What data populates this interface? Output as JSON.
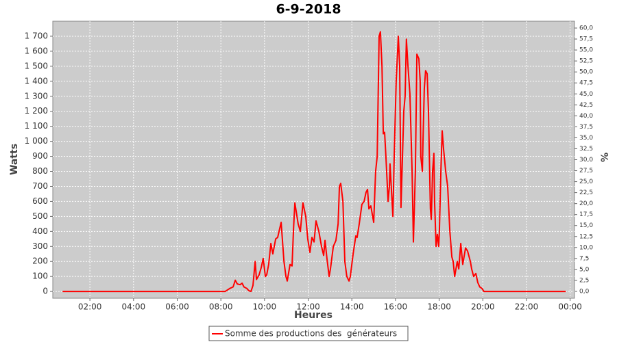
{
  "chart_data": {
    "type": "line",
    "title": "6-9-2018",
    "x_label": "Heures",
    "y_label": "Watts",
    "y2_label": "%",
    "x": [
      0.75,
      8.2,
      8.41,
      8.56,
      8.66,
      8.75,
      8.88,
      8.97,
      9.06,
      9.19,
      9.28,
      9.38,
      9.47,
      9.57,
      9.63,
      9.75,
      9.85,
      9.94,
      10.04,
      10.1,
      10.19,
      10.29,
      10.38,
      10.51,
      10.6,
      10.76,
      10.89,
      10.98,
      11.04,
      11.17,
      11.26,
      11.33,
      11.39,
      11.54,
      11.64,
      11.76,
      11.89,
      11.98,
      12.08,
      12.17,
      12.27,
      12.36,
      12.49,
      12.61,
      12.71,
      12.77,
      12.86,
      12.96,
      13.02,
      13.15,
      13.27,
      13.37,
      13.43,
      13.49,
      13.59,
      13.68,
      13.77,
      13.87,
      13.93,
      14.06,
      14.18,
      14.24,
      14.34,
      14.46,
      14.56,
      14.65,
      14.72,
      14.78,
      14.87,
      15.0,
      15.09,
      15.16,
      15.25,
      15.31,
      15.38,
      15.44,
      15.5,
      15.56,
      15.66,
      15.72,
      15.75,
      15.88,
      15.94,
      16.03,
      16.13,
      16.19,
      16.25,
      16.38,
      16.44,
      16.5,
      16.57,
      16.66,
      16.76,
      16.82,
      16.91,
      16.98,
      17.07,
      17.13,
      17.16,
      17.23,
      17.26,
      17.32,
      17.38,
      17.45,
      17.51,
      17.6,
      17.64,
      17.7,
      17.76,
      17.79,
      17.86,
      17.92,
      17.98,
      18.01,
      18.08,
      18.14,
      18.2,
      18.3,
      18.39,
      18.49,
      18.58,
      18.64,
      18.71,
      18.77,
      18.83,
      18.9,
      18.99,
      19.08,
      19.21,
      19.3,
      19.43,
      19.49,
      19.58,
      19.68,
      19.77,
      19.86,
      19.96,
      20.05,
      23.8
    ],
    "series": [
      {
        "name": "Somme des productions des  générateurs",
        "color": "#ff0000",
        "values": [
          0,
          0,
          20,
          30,
          75,
          50,
          45,
          55,
          30,
          20,
          5,
          0,
          40,
          200,
          80,
          110,
          160,
          220,
          100,
          110,
          180,
          320,
          250,
          350,
          360,
          460,
          200,
          100,
          70,
          180,
          170,
          420,
          590,
          450,
          400,
          590,
          500,
          350,
          260,
          360,
          330,
          470,
          400,
          300,
          240,
          340,
          220,
          100,
          150,
          300,
          340,
          450,
          700,
          720,
          600,
          200,
          100,
          70,
          100,
          250,
          370,
          360,
          450,
          580,
          600,
          660,
          680,
          550,
          570,
          460,
          800,
          900,
          1700,
          1730,
          1500,
          1050,
          1060,
          900,
          600,
          700,
          850,
          500,
          900,
          1400,
          1700,
          1500,
          560,
          1200,
          1300,
          1680,
          1500,
          1320,
          800,
          330,
          800,
          1580,
          1550,
          1400,
          900,
          800,
          1000,
          1350,
          1470,
          1450,
          1200,
          550,
          480,
          800,
          920,
          600,
          300,
          380,
          300,
          400,
          800,
          1070,
          950,
          800,
          700,
          400,
          230,
          200,
          100,
          150,
          200,
          150,
          320,
          180,
          290,
          270,
          200,
          150,
          100,
          120,
          60,
          30,
          20,
          0,
          0
        ]
      }
    ],
    "xlim": [
      0.3,
      24.2
    ],
    "xticks": [
      {
        "value": 2,
        "label": "02:00"
      },
      {
        "value": 4,
        "label": "04:00"
      },
      {
        "value": 6,
        "label": "06:00"
      },
      {
        "value": 8,
        "label": "08:00"
      },
      {
        "value": 10,
        "label": "10:00"
      },
      {
        "value": 12,
        "label": "12:00"
      },
      {
        "value": 14,
        "label": "14:00"
      },
      {
        "value": 16,
        "label": "16:00"
      },
      {
        "value": 18,
        "label": "18:00"
      },
      {
        "value": 20,
        "label": "20:00"
      },
      {
        "value": 22,
        "label": "22:00"
      },
      {
        "value": 24,
        "label": "00:00"
      }
    ],
    "ylim": [
      -45,
      1800
    ],
    "yticks": [
      0,
      100,
      200,
      300,
      400,
      500,
      600,
      700,
      800,
      900,
      {
        "value": 1000,
        "label": "1 000"
      },
      {
        "value": 1100,
        "label": "1 100"
      },
      {
        "value": 1200,
        "label": "1 200"
      },
      {
        "value": 1300,
        "label": "1 300"
      },
      {
        "value": 1400,
        "label": "1 400"
      },
      {
        "value": 1500,
        "label": "1 500"
      },
      {
        "value": 1600,
        "label": "1 600"
      },
      {
        "value": 1700,
        "label": "1 700"
      }
    ],
    "y2lim": [
      -1.56,
      61.56
    ],
    "y2ticks": [
      {
        "value": 0,
        "label": "0,0"
      },
      {
        "value": 2.5,
        "label": "2,5"
      },
      {
        "value": 5,
        "label": "5,0"
      },
      {
        "value": 7.5,
        "label": "7,5"
      },
      {
        "value": 10,
        "label": "10,0"
      },
      {
        "value": 12.5,
        "label": "12,5"
      },
      {
        "value": 15,
        "label": "15,0"
      },
      {
        "value": 17.5,
        "label": "17,5"
      },
      {
        "value": 20,
        "label": "20,0"
      },
      {
        "value": 22.5,
        "label": "22,5"
      },
      {
        "value": 25,
        "label": "25,0"
      },
      {
        "value": 27.5,
        "label": "27,5"
      },
      {
        "value": 30,
        "label": "30,0"
      },
      {
        "value": 32.5,
        "label": "32,5"
      },
      {
        "value": 35,
        "label": "35,0"
      },
      {
        "value": 37.5,
        "label": "37,5"
      },
      {
        "value": 40,
        "label": "40,0"
      },
      {
        "value": 42.5,
        "label": "42,5"
      },
      {
        "value": 45,
        "label": "45,0"
      },
      {
        "value": 47.5,
        "label": "47,5"
      },
      {
        "value": 50,
        "label": "50,0"
      },
      {
        "value": 52.5,
        "label": "52,5"
      },
      {
        "value": 55,
        "label": "55,0"
      },
      {
        "value": 57.5,
        "label": "57,5"
      },
      {
        "value": 60,
        "label": "60,0"
      }
    ],
    "grid": true,
    "legend": "bottom"
  }
}
